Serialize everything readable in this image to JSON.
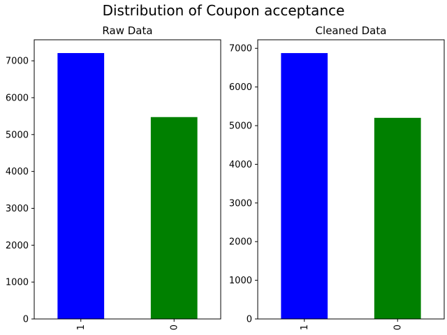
{
  "figure": {
    "title": "Distribution of Coupon acceptance"
  },
  "chart_data": [
    {
      "type": "bar",
      "title": "Raw Data",
      "xlabel": "",
      "ylabel": "",
      "categories": [
        "1",
        "0"
      ],
      "values": [
        7210,
        5474
      ],
      "colors": [
        "#0000ff",
        "#008000"
      ],
      "ylim": [
        0,
        7570
      ],
      "yticks": [
        0,
        1000,
        2000,
        3000,
        4000,
        5000,
        6000,
        7000
      ],
      "grid": false,
      "legend": "none"
    },
    {
      "type": "bar",
      "title": "Cleaned Data",
      "xlabel": "",
      "ylabel": "",
      "categories": [
        "1",
        "0"
      ],
      "values": [
        6877,
        5202
      ],
      "colors": [
        "#0000ff",
        "#008000"
      ],
      "ylim": [
        0,
        7221
      ],
      "yticks": [
        0,
        1000,
        2000,
        3000,
        4000,
        5000,
        6000,
        7000
      ],
      "grid": false,
      "legend": "none"
    }
  ]
}
